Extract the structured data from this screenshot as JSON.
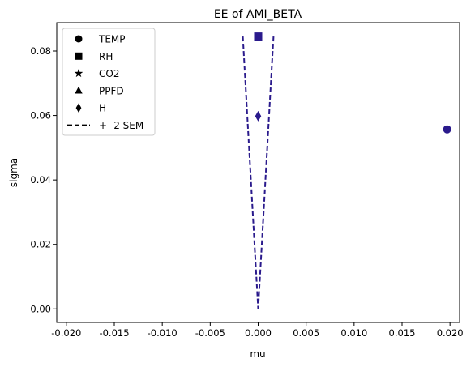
{
  "chart_data": {
    "type": "scatter",
    "title": "EE of AMI_BETA",
    "xlabel": "mu",
    "ylabel": "sigma",
    "xlim": [
      -0.021,
      0.021
    ],
    "ylim": [
      -0.0042,
      0.0888
    ],
    "xticks": [
      -0.02,
      -0.015,
      -0.01,
      -0.005,
      0.0,
      0.005,
      0.01,
      0.015,
      0.02
    ],
    "xtick_labels": [
      "-0.020",
      "-0.015",
      "-0.010",
      "-0.005",
      "0.000",
      "0.005",
      "0.010",
      "0.015",
      "0.020"
    ],
    "yticks": [
      0.0,
      0.02,
      0.04,
      0.06,
      0.08
    ],
    "ytick_labels": [
      "0.00",
      "0.02",
      "0.04",
      "0.06",
      "0.08"
    ],
    "grid": false,
    "legend_position": "top-left",
    "series": [
      {
        "name": "TEMP",
        "marker": "circle",
        "x": [
          0.0197
        ],
        "y": [
          0.0557
        ]
      },
      {
        "name": "RH",
        "marker": "square",
        "x": [
          0.0
        ],
        "y": [
          0.0845
        ]
      },
      {
        "name": "CO2",
        "marker": "star",
        "x": [],
        "y": []
      },
      {
        "name": "PPFD",
        "marker": "triangle",
        "x": [],
        "y": []
      },
      {
        "name": "H",
        "marker": "diamond",
        "x": [
          0.0
        ],
        "y": [
          0.0598
        ]
      }
    ],
    "sem_lines": {
      "name": "+- 2 SEM",
      "style": "dashed",
      "left": {
        "x": [
          -0.0016,
          0.0
        ],
        "y": [
          0.0845,
          0.0
        ]
      },
      "right": {
        "x": [
          0.0016,
          0.0
        ],
        "y": [
          0.0845,
          0.0
        ]
      }
    }
  },
  "colors": {
    "marker": "#2a1a8c",
    "sem_line": "#2a1a8c",
    "legend_marker": "#000000",
    "axes": "#000000",
    "legend_border": "#cccccc"
  }
}
